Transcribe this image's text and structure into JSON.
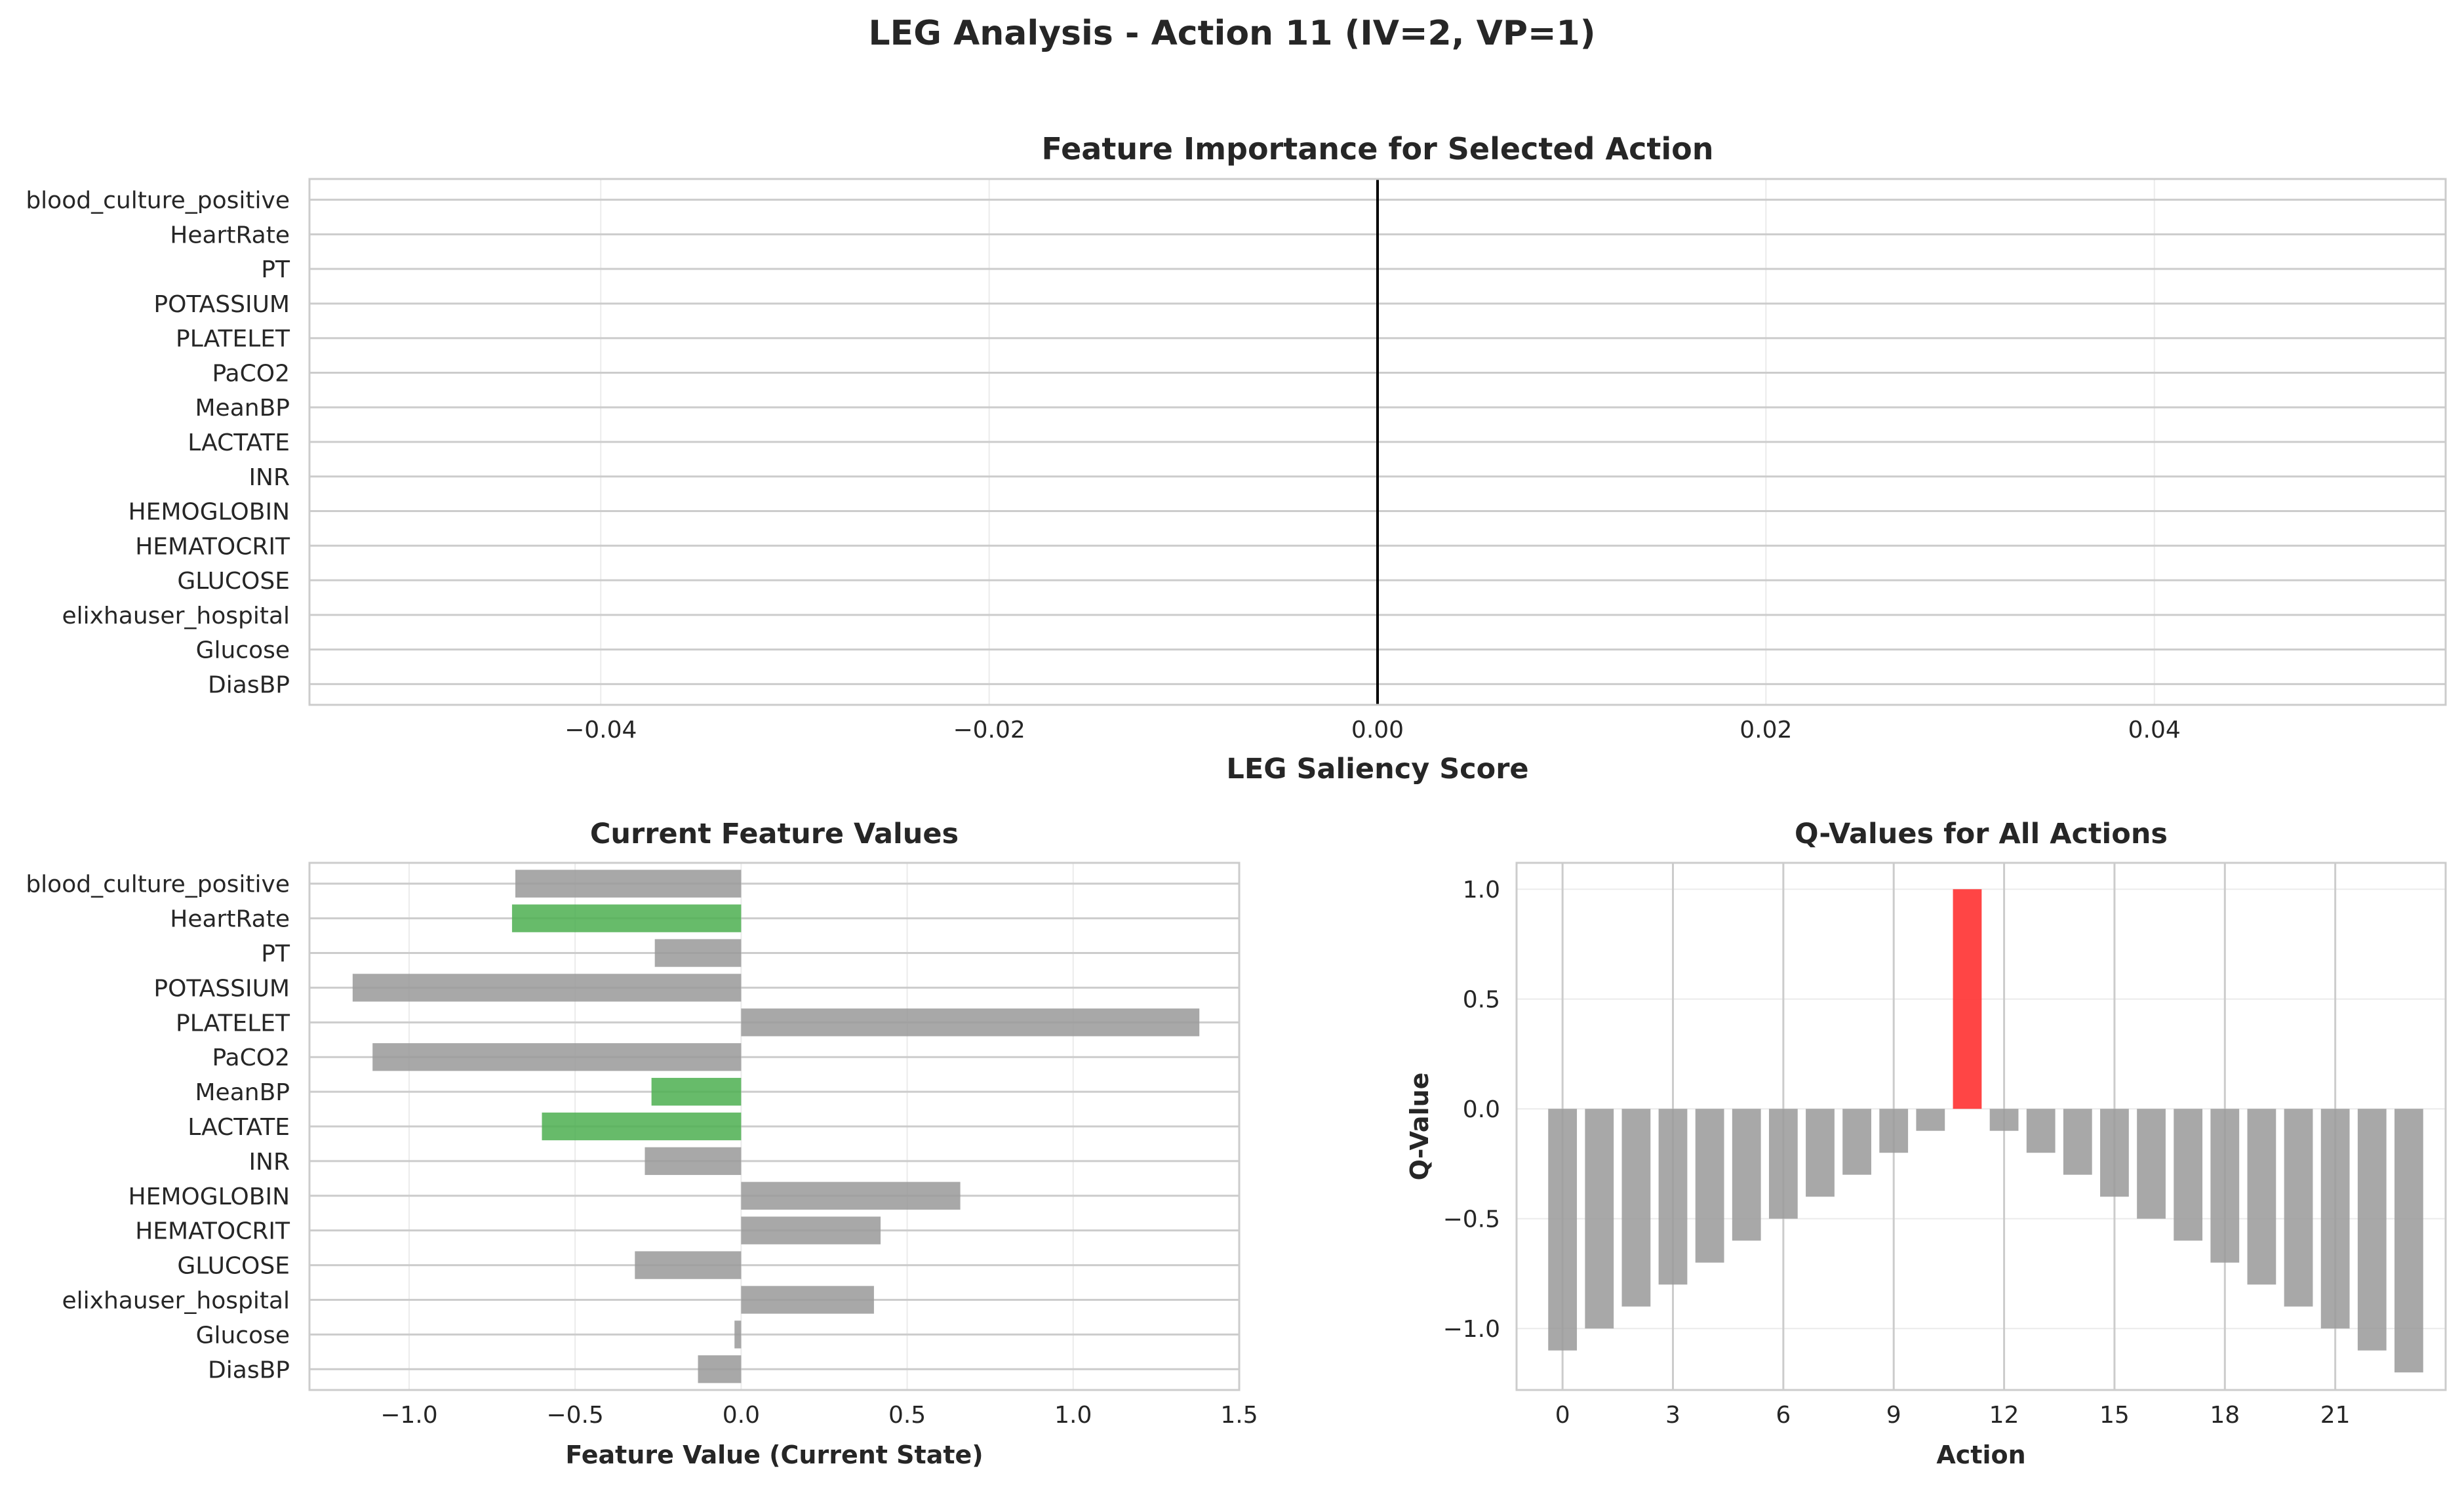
{
  "figure": {
    "title": "LEG Analysis - Action 11 (IV=2, VP=1)"
  },
  "chart_data": [
    {
      "type": "bar",
      "orientation": "horizontal",
      "title": "Feature Importance for Selected Action",
      "xlabel": "LEG Saliency Score",
      "ylabel": "",
      "categories": [
        "blood_culture_positive",
        "HeartRate",
        "PT",
        "POTASSIUM",
        "PLATELET",
        "PaCO2",
        "MeanBP",
        "LACTATE",
        "INR",
        "HEMOGLOBIN",
        "HEMATOCRIT",
        "GLUCOSE",
        "elixhauser_hospital",
        "Glucose",
        "DiasBP"
      ],
      "values": [
        0,
        0,
        0,
        0,
        0,
        0,
        0,
        0,
        0,
        0,
        0,
        0,
        0,
        0,
        0
      ],
      "xlim": [
        -0.055,
        0.055
      ],
      "xticks": [
        -0.04,
        -0.02,
        0.0,
        0.02,
        0.04
      ],
      "xtick_labels": [
        "−0.04",
        "−0.02",
        "0.00",
        "0.02",
        "0.04"
      ],
      "grid": true
    },
    {
      "type": "bar",
      "orientation": "horizontal",
      "title": "Current Feature Values",
      "xlabel": "Feature Value (Current State)",
      "ylabel": "",
      "categories": [
        "blood_culture_positive",
        "HeartRate",
        "PT",
        "POTASSIUM",
        "PLATELET",
        "PaCO2",
        "MeanBP",
        "LACTATE",
        "INR",
        "HEMOGLOBIN",
        "HEMATOCRIT",
        "GLUCOSE",
        "elixhauser_hospital",
        "Glucose",
        "DiasBP"
      ],
      "values": [
        -0.68,
        -0.69,
        -0.26,
        -1.17,
        1.38,
        -1.11,
        -0.27,
        -0.6,
        -0.29,
        0.66,
        0.42,
        -0.32,
        0.4,
        -0.02,
        -0.13
      ],
      "highlighted": [
        "HeartRate",
        "MeanBP",
        "LACTATE"
      ],
      "xlim": [
        -1.3,
        1.5
      ],
      "xticks": [
        -1.0,
        -0.5,
        0.0,
        0.5,
        1.0,
        1.5
      ],
      "xtick_labels": [
        "−1.0",
        "−0.5",
        "0.0",
        "0.5",
        "1.0",
        "1.5"
      ],
      "grid": true
    },
    {
      "type": "bar",
      "title": "Q-Values for All Actions",
      "xlabel": "Action",
      "ylabel": "Q-Value",
      "x": [
        0,
        1,
        2,
        3,
        4,
        5,
        6,
        7,
        8,
        9,
        10,
        11,
        12,
        13,
        14,
        15,
        16,
        17,
        18,
        19,
        20,
        21,
        22,
        23
      ],
      "values": [
        -1.1,
        -1.0,
        -0.9,
        -0.8,
        -0.7,
        -0.6,
        -0.5,
        -0.4,
        -0.3,
        -0.2,
        -0.1,
        1.0,
        -0.1,
        -0.2,
        -0.3,
        -0.4,
        -0.5,
        -0.6,
        -0.7,
        -0.8,
        -0.9,
        -1.0,
        -1.1,
        -1.2
      ],
      "selected_action": 11,
      "xlim": [
        -1.25,
        24.0
      ],
      "ylim": [
        -1.28,
        1.12
      ],
      "xticks": [
        0,
        3,
        6,
        9,
        12,
        15,
        18,
        21
      ],
      "xtick_labels": [
        "0",
        "3",
        "6",
        "9",
        "12",
        "15",
        "18",
        "21"
      ],
      "yticks": [
        -1.0,
        -0.5,
        0.0,
        0.5,
        1.0
      ],
      "ytick_labels": [
        "−1.0",
        "−0.5",
        "0.0",
        "0.5",
        "1.0"
      ],
      "grid": true
    }
  ],
  "colors": {
    "bar_default": "#999999",
    "bar_highlight": "#4caf50",
    "bar_selected": "#ff3b3b",
    "grid": "#cccccc",
    "spine": "#cccccc",
    "zero_line": "#000000",
    "text": "#262626"
  }
}
